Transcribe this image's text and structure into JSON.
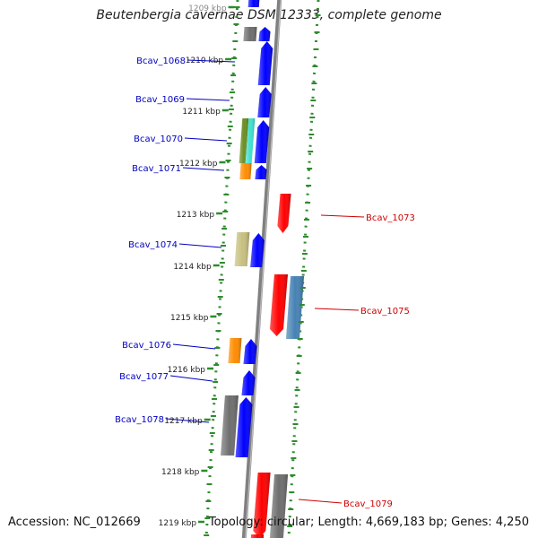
{
  "title": "Beutenbergia cavernae DSM 12333, complete genome",
  "accession": "Accession: NC_012669",
  "topology": "Topology: circular; Length: 4,669,183 bp; Genes: 4,250",
  "colors": {
    "forward_gene": "#0000ff",
    "reverse_gene": "#ff0000",
    "left_label": "#0000c0",
    "right_label": "#d00000",
    "tick_green": "#2e8b2e",
    "backbone": "#808080"
  },
  "scale_ticks": [
    "1209 kbp",
    "1210 kbp",
    "1211 kbp",
    "1212 kbp",
    "1213 kbp",
    "1214 kbp",
    "1215 kbp",
    "1216 kbp",
    "1217 kbp",
    "1218 kbp",
    "1219 kbp"
  ],
  "left_gene_labels": [
    "Bcav_1068",
    "Bcav_1069",
    "Bcav_1070",
    "Bcav_1071",
    "Bcav_1074",
    "Bcav_1076",
    "Bcav_1077",
    "Bcav_1078"
  ],
  "right_gene_labels": [
    "Bcav_1073",
    "Bcav_1075",
    "Bcav_1079"
  ],
  "gene_colors": {
    "blue": "#0000ff",
    "red": "#ff0000",
    "steel": "#4682b4",
    "gray": "#6e6e6e",
    "orange": "#ff8c00",
    "khaki": "#c8c080",
    "olive": "#6b8e23",
    "teal": "#20b2aa",
    "cyan": "#40e0d0"
  }
}
